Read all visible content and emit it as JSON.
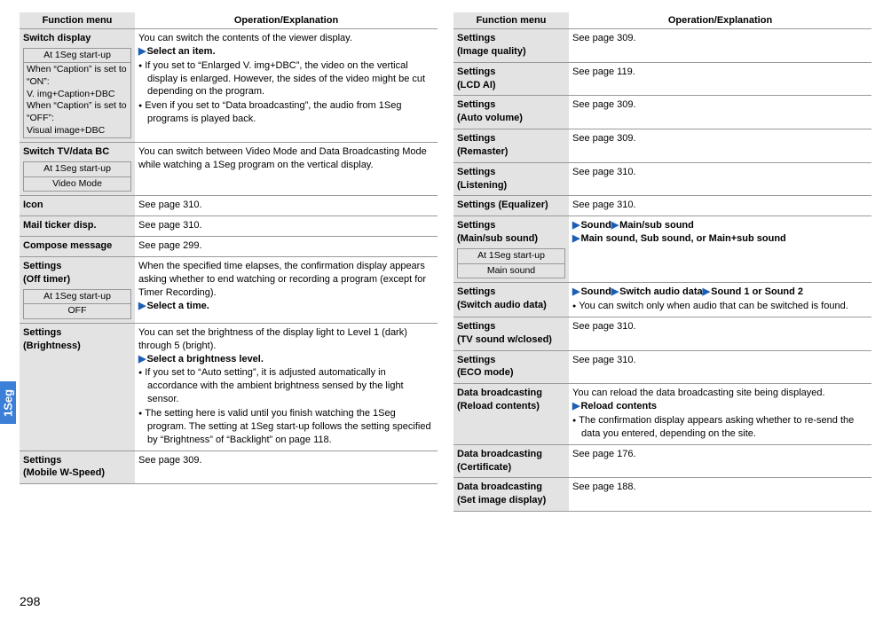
{
  "page_number": "298",
  "side_tab": "1Seg",
  "headers": {
    "menu": "Function menu",
    "explain": "Operation/Explanation"
  },
  "left": [
    {
      "menu_title": "Switch display",
      "subbox": {
        "title": "At 1Seg start-up",
        "body": "When “Caption” is set to “ON”:\nV. img+Caption+DBC\nWhen “Caption” is set to “OFF”:\nVisual image+DBC",
        "center": false
      },
      "desc_plain": "You can switch the contents of the viewer display.",
      "desc_arrow": "Select an item.",
      "bullets": [
        "If you set to “Enlarged V. img+DBC”, the video on the vertical display is enlarged. However, the sides of the video might be cut depending on the program.",
        "Even if you set to “Data broadcasting”, the audio from 1Seg programs is played back."
      ]
    },
    {
      "menu_title": "Switch TV/data BC",
      "subbox": {
        "title": "At 1Seg start-up",
        "body": "Video Mode",
        "center": true
      },
      "desc_plain": "You can switch between Video Mode and Data Broadcasting Mode while watching a 1Seg program on the vertical display."
    },
    {
      "menu_title": "Icon",
      "desc_plain": "See page 310."
    },
    {
      "menu_title": "Mail ticker disp.",
      "desc_plain": "See page 310."
    },
    {
      "menu_title": "Compose message",
      "desc_plain": "See page 299."
    },
    {
      "menu_title": "Settings\n(Off timer)",
      "subbox": {
        "title": "At 1Seg start-up",
        "body": "OFF",
        "center": true
      },
      "desc_plain": "When the specified time elapses, the confirmation display appears asking whether to end watching or recording a program (except for Timer Recording).",
      "desc_arrow": "Select a time."
    },
    {
      "menu_title": "Settings\n(Brightness)",
      "desc_plain": "You can set the brightness of the display light to Level 1 (dark) through 5 (bright).",
      "desc_arrow": "Select a brightness level.",
      "bullets": [
        "If you set to “Auto setting”, it is adjusted automatically in accordance with the ambient brightness sensed by the light sensor.",
        "The setting here is valid until you finish watching the 1Seg program. The setting at 1Seg start-up follows the setting specified by “Brightness” of “Backlight” on page 118."
      ]
    },
    {
      "menu_title": "Settings\n(Mobile W-Speed)",
      "desc_plain": "See page 309."
    }
  ],
  "right": [
    {
      "menu_title": "Settings\n(Image quality)",
      "desc_plain": "See page 309."
    },
    {
      "menu_title": "Settings\n(LCD AI)",
      "desc_plain": "See page 119."
    },
    {
      "menu_title": "Settings\n(Auto volume)",
      "desc_plain": "See page 309."
    },
    {
      "menu_title": "Settings\n(Remaster)",
      "desc_plain": "See page 309."
    },
    {
      "menu_title": "Settings\n(Listening)",
      "desc_plain": "See page 310."
    },
    {
      "menu_title": "Settings (Equalizer)",
      "desc_plain": "See page 310."
    },
    {
      "menu_title": "Settings\n(Main/sub sound)",
      "subbox": {
        "title": "At 1Seg start-up",
        "body": "Main sound",
        "center": true
      },
      "arrow_chain": [
        "Sound",
        "Main/sub sound"
      ],
      "arrow_second": "Main sound, Sub sound, or Main+sub sound"
    },
    {
      "menu_title": "Settings\n(Switch audio data)",
      "arrow_chain": [
        "Sound",
        "Switch audio data",
        "Sound 1 or Sound 2"
      ],
      "bullets": [
        "You can switch only when audio that can be switched is found."
      ]
    },
    {
      "menu_title": "Settings\n(TV sound w/closed)",
      "desc_plain": "See page 310."
    },
    {
      "menu_title": "Settings\n(ECO mode)",
      "desc_plain": "See page 310."
    },
    {
      "menu_title": "Data broadcasting\n(Reload contents)",
      "desc_plain": "You can reload the data broadcasting site being displayed.",
      "desc_arrow": "Reload contents",
      "bullets": [
        "The confirmation display appears asking whether to re-send the data you entered, depending on the site."
      ]
    },
    {
      "menu_title": "Data broadcasting\n(Certificate)",
      "desc_plain": "See page 176."
    },
    {
      "menu_title": "Data broadcasting\n(Set image display)",
      "desc_plain": "See page 188."
    }
  ]
}
